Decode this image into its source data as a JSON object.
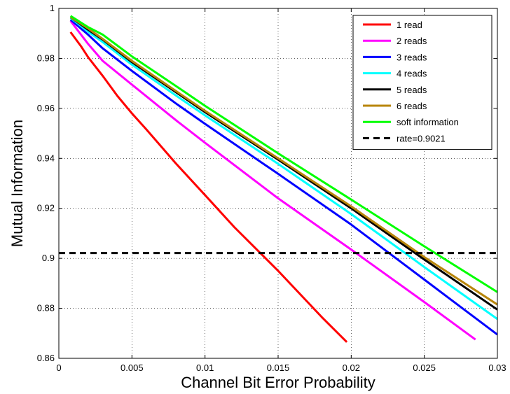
{
  "chart_data": {
    "type": "line",
    "title": "",
    "xlabel": "Channel Bit Error Probability",
    "ylabel": "Mutual Information",
    "xlim": [
      0,
      0.03
    ],
    "ylim": [
      0.86,
      1
    ],
    "xticks": [
      0,
      0.005,
      0.01,
      0.015,
      0.02,
      0.025,
      0.03
    ],
    "xtick_labels": [
      "0",
      "0.005",
      "0.01",
      "0.015",
      "0.02",
      "0.025",
      "0.03"
    ],
    "yticks": [
      0.86,
      0.88,
      0.9,
      0.92,
      0.94,
      0.96,
      0.98,
      1
    ],
    "ytick_labels": [
      "0.86",
      "0.88",
      "0.9",
      "0.92",
      "0.94",
      "0.96",
      "0.98",
      "1"
    ],
    "grid": true,
    "grid_style": "dotted",
    "legend_position": "top-right",
    "series": [
      {
        "name": "1 read",
        "color": "#ff0000",
        "style": "solid",
        "x": [
          0.0008,
          0.0015,
          0.002,
          0.003,
          0.004,
          0.005,
          0.006,
          0.008,
          0.01,
          0.012,
          0.015,
          0.018,
          0.0197
        ],
        "y": [
          0.9905,
          0.985,
          0.9805,
          0.973,
          0.965,
          0.958,
          0.9515,
          0.938,
          0.9253,
          0.9125,
          0.895,
          0.8764,
          0.8665
        ]
      },
      {
        "name": "2 reads",
        "color": "#ff00ff",
        "style": "solid",
        "x": [
          0.0008,
          0.002,
          0.003,
          0.005,
          0.008,
          0.01,
          0.015,
          0.02,
          0.025,
          0.0285
        ],
        "y": [
          0.995,
          0.9858,
          0.979,
          0.9695,
          0.9553,
          0.9462,
          0.924,
          0.9035,
          0.8825,
          0.8675
        ]
      },
      {
        "name": "3 reads",
        "color": "#0000ff",
        "style": "solid",
        "x": [
          0.0008,
          0.002,
          0.003,
          0.005,
          0.008,
          0.01,
          0.015,
          0.02,
          0.025,
          0.03
        ],
        "y": [
          0.9955,
          0.9895,
          0.984,
          0.975,
          0.962,
          0.9538,
          0.9338,
          0.9135,
          0.8915,
          0.8695
        ]
      },
      {
        "name": "4 reads",
        "color": "#00ffff",
        "style": "solid",
        "x": [
          0.0008,
          0.002,
          0.003,
          0.005,
          0.008,
          0.01,
          0.015,
          0.02,
          0.025,
          0.03
        ],
        "y": [
          0.9962,
          0.9907,
          0.9865,
          0.9775,
          0.9652,
          0.9572,
          0.9378,
          0.9177,
          0.8965,
          0.8757
        ]
      },
      {
        "name": "5 reads",
        "color": "#000000",
        "style": "solid",
        "x": [
          0.0008,
          0.002,
          0.003,
          0.005,
          0.008,
          0.01,
          0.015,
          0.02,
          0.025,
          0.03
        ],
        "y": [
          0.9965,
          0.9915,
          0.9875,
          0.9785,
          0.9665,
          0.9585,
          0.9395,
          0.92,
          0.8995,
          0.8795
        ]
      },
      {
        "name": "6 reads",
        "color": "#b8860b",
        "style": "solid",
        "x": [
          0.0008,
          0.002,
          0.003,
          0.005,
          0.008,
          0.01,
          0.015,
          0.02,
          0.025,
          0.03
        ],
        "y": [
          0.9965,
          0.992,
          0.9878,
          0.979,
          0.967,
          0.959,
          0.94,
          0.9208,
          0.9005,
          0.8815
        ]
      },
      {
        "name": "soft information",
        "color": "#00ff00",
        "style": "solid",
        "x": [
          0.0008,
          0.002,
          0.003,
          0.005,
          0.008,
          0.01,
          0.015,
          0.02,
          0.025,
          0.03
        ],
        "y": [
          0.997,
          0.9925,
          0.9895,
          0.9808,
          0.969,
          0.961,
          0.942,
          0.9235,
          0.9048,
          0.8865
        ]
      },
      {
        "name": "rate=0.9021",
        "color": "#000000",
        "style": "dashed",
        "x": [
          0,
          0.03
        ],
        "y": [
          0.9021,
          0.9021
        ]
      }
    ]
  }
}
